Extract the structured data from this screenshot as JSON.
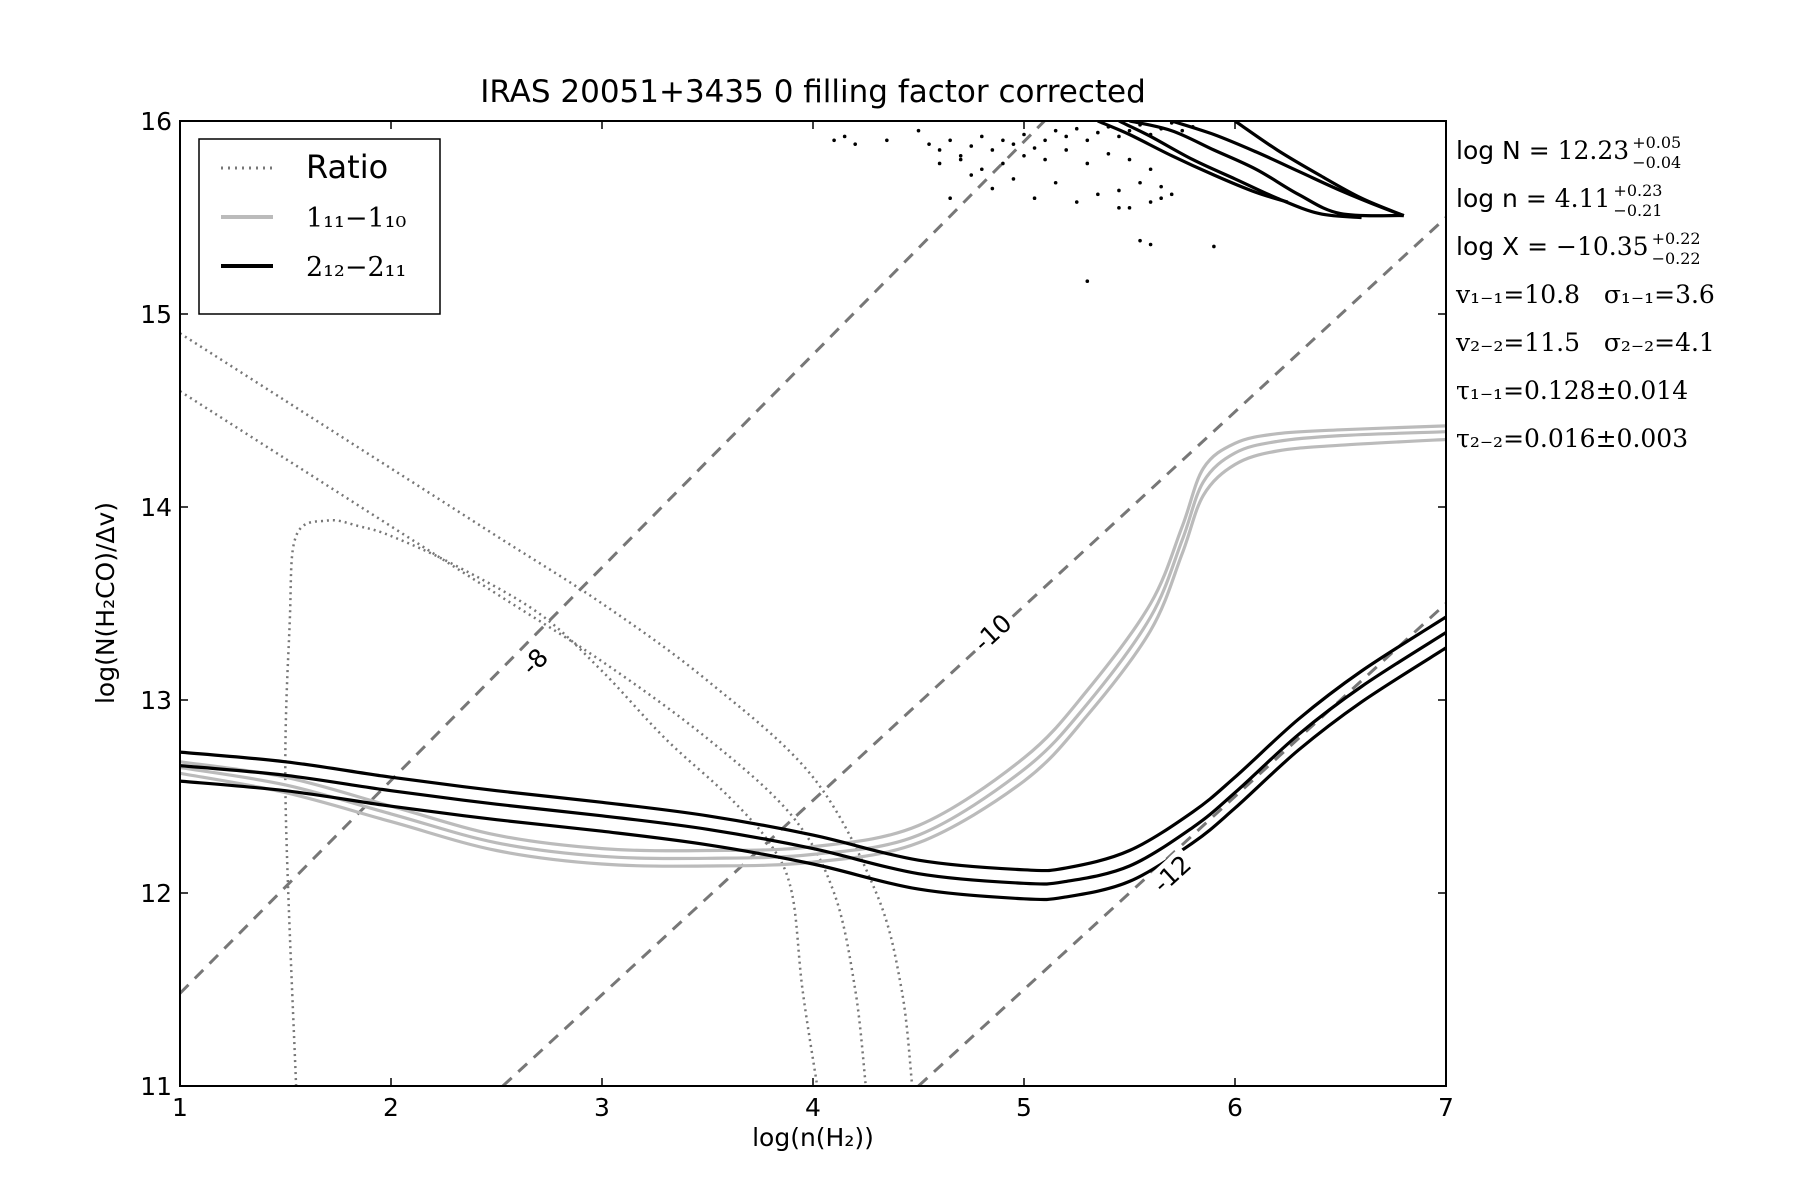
{
  "chart_data": {
    "type": "line",
    "title": "IRAS 20051+3435 0 filling factor corrected",
    "xlabel": "log(n(H₂))",
    "ylabel": "log(N(H₂CO)/Δv)",
    "xlim": [
      1,
      7
    ],
    "ylim": [
      11,
      16
    ],
    "x_ticks": [
      "1",
      "2",
      "3",
      "4",
      "5",
      "6",
      "7"
    ],
    "y_ticks": [
      "11",
      "12",
      "13",
      "14",
      "15",
      "16"
    ],
    "grid": false,
    "legend": {
      "placement": "top-left",
      "entries": [
        {
          "label": "Ratio",
          "style": "dotted",
          "color": "#777777"
        },
        {
          "label": "1₁₁−1₁₀",
          "style": "solid",
          "color": "#bbbbbb"
        },
        {
          "label": "2₁₂−2₁₁",
          "style": "solid",
          "color": "#000000"
        }
      ]
    },
    "x_diagonals": {
      "color": "#777777",
      "style": "dashed",
      "lines": [
        {
          "label": "-8",
          "x": [
            1,
            7
          ],
          "y": [
            11.48,
            18.1
          ]
        },
        {
          "label": "-10",
          "x": [
            2.53,
            7
          ],
          "y": [
            11,
            15.5
          ]
        },
        {
          "label": "-12",
          "x": [
            4.5,
            7
          ],
          "y": [
            11,
            13.5
          ]
        }
      ]
    },
    "series": [
      {
        "name": "Ratio",
        "color": "#777777",
        "style": "dotted",
        "x": [
          1.55,
          1.5,
          1.52,
          1.55,
          1.7,
          1.85,
          2.0,
          2.3,
          2.7,
          3.0,
          3.3,
          3.6,
          3.8,
          3.9,
          3.95,
          4.02
        ],
        "y": [
          11.0,
          12.5,
          13.4,
          13.85,
          13.93,
          13.9,
          13.85,
          13.7,
          13.45,
          13.15,
          12.8,
          12.5,
          12.25,
          12.0,
          11.5,
          11.0
        ]
      },
      {
        "name": "Ratio",
        "color": "#777777",
        "style": "dotted",
        "x": [
          1.0,
          1.5,
          2.0,
          2.5,
          3.0,
          3.5,
          3.9,
          4.1,
          4.2,
          4.25
        ],
        "y": [
          14.6,
          14.25,
          13.9,
          13.55,
          13.2,
          12.8,
          12.4,
          12.0,
          11.5,
          11.0
        ]
      },
      {
        "name": "Ratio",
        "color": "#777777",
        "style": "dotted",
        "x": [
          1.0,
          1.5,
          2.0,
          2.5,
          3.0,
          3.5,
          4.0,
          4.3,
          4.42,
          4.47
        ],
        "y": [
          14.9,
          14.55,
          14.2,
          13.85,
          13.5,
          13.1,
          12.6,
          12.0,
          11.5,
          11.0
        ]
      },
      {
        "name": "1₁₁−1₁₀",
        "color": "#bbbbbb",
        "style": "solid",
        "x": [
          1.0,
          1.5,
          2.0,
          2.5,
          3.0,
          3.5,
          4.0,
          4.5,
          5.0,
          5.3,
          5.6,
          5.75,
          5.85,
          6.0,
          6.2,
          6.5,
          7.0
        ],
        "y": [
          12.68,
          12.6,
          12.45,
          12.3,
          12.23,
          12.22,
          12.24,
          12.35,
          12.7,
          13.05,
          13.5,
          13.9,
          14.2,
          14.33,
          14.38,
          14.4,
          14.42
        ]
      },
      {
        "name": "1₁₁−1₁₀",
        "color": "#bbbbbb",
        "style": "solid",
        "x": [
          1.0,
          1.5,
          2.0,
          2.5,
          3.0,
          3.5,
          4.0,
          4.5,
          5.0,
          5.3,
          5.6,
          5.75,
          5.85,
          6.0,
          6.2,
          6.5,
          7.0
        ],
        "y": [
          12.65,
          12.56,
          12.41,
          12.26,
          12.19,
          12.18,
          12.2,
          12.3,
          12.64,
          12.98,
          13.43,
          13.83,
          14.13,
          14.28,
          14.34,
          14.37,
          14.39
        ]
      },
      {
        "name": "1₁₁−1₁₀",
        "color": "#bbbbbb",
        "style": "solid",
        "x": [
          1.0,
          1.5,
          2.0,
          2.5,
          3.0,
          3.5,
          4.0,
          4.5,
          5.0,
          5.3,
          5.6,
          5.75,
          5.85,
          6.0,
          6.2,
          6.5,
          7.0
        ],
        "y": [
          12.62,
          12.52,
          12.37,
          12.22,
          12.15,
          12.14,
          12.16,
          12.26,
          12.58,
          12.92,
          13.36,
          13.76,
          14.06,
          14.22,
          14.29,
          14.32,
          14.35
        ]
      },
      {
        "name": "2₁₂−2₁₁",
        "color": "#000000",
        "style": "solid",
        "x": [
          1.0,
          1.5,
          2.0,
          2.5,
          3.0,
          3.5,
          4.0,
          4.5,
          5.0,
          5.2,
          5.5,
          5.8,
          6.0,
          6.3,
          6.6,
          7.0
        ],
        "y": [
          12.73,
          12.68,
          12.6,
          12.53,
          12.47,
          12.4,
          12.3,
          12.17,
          12.12,
          12.13,
          12.22,
          12.42,
          12.6,
          12.9,
          13.15,
          13.43
        ]
      },
      {
        "name": "2₁₂−2₁₁",
        "color": "#000000",
        "style": "solid",
        "x": [
          1.0,
          1.5,
          2.0,
          2.5,
          3.0,
          3.5,
          4.0,
          4.5,
          5.0,
          5.2,
          5.5,
          5.8,
          6.0,
          6.3,
          6.6,
          7.0
        ],
        "y": [
          12.66,
          12.61,
          12.53,
          12.46,
          12.4,
          12.33,
          12.23,
          12.1,
          12.05,
          12.06,
          12.14,
          12.34,
          12.52,
          12.82,
          13.07,
          13.35
        ]
      },
      {
        "name": "2₁₂−2₁₁",
        "color": "#000000",
        "style": "solid",
        "x": [
          1.0,
          1.5,
          2.0,
          2.5,
          3.0,
          3.5,
          4.0,
          4.5,
          5.0,
          5.2,
          5.5,
          5.8,
          6.0,
          6.3,
          6.6,
          7.0
        ],
        "y": [
          12.58,
          12.53,
          12.45,
          12.38,
          12.32,
          12.25,
          12.15,
          12.02,
          11.97,
          11.98,
          12.06,
          12.26,
          12.44,
          12.74,
          12.99,
          13.27
        ]
      },
      {
        "name": "",
        "color": "#000000",
        "style": "solid",
        "x": [
          5.5,
          5.7,
          5.9,
          6.1,
          6.3,
          6.5,
          6.8
        ],
        "y": [
          16.0,
          15.95,
          15.85,
          15.75,
          15.62,
          15.52,
          15.51
        ]
      },
      {
        "name": "",
        "color": "#000000",
        "style": "solid",
        "x": [
          5.45,
          5.6,
          5.8,
          6.0,
          6.2,
          6.4,
          6.6
        ],
        "y": [
          16.0,
          15.92,
          15.8,
          15.7,
          15.6,
          15.52,
          15.5
        ]
      },
      {
        "name": "",
        "color": "#000000",
        "style": "solid",
        "x": [
          5.7,
          5.9,
          6.1,
          6.3,
          6.5,
          6.7,
          6.8
        ],
        "y": [
          16.0,
          15.93,
          15.84,
          15.74,
          15.64,
          15.55,
          15.51
        ]
      },
      {
        "name": "",
        "color": "#000000",
        "style": "solid",
        "x": [
          5.35,
          5.5,
          5.7,
          5.9,
          6.1,
          6.25
        ],
        "y": [
          16.0,
          15.93,
          15.82,
          15.72,
          15.63,
          15.58
        ]
      },
      {
        "name": "",
        "color": "#000000",
        "style": "solid",
        "x": [
          6.0,
          6.2,
          6.4,
          6.6,
          6.8
        ],
        "y": [
          16.0,
          15.85,
          15.72,
          15.6,
          15.51
        ]
      }
    ],
    "scatter_points": {
      "color": "#000000",
      "x": [
        4.1,
        4.15,
        4.2,
        4.35,
        4.5,
        4.55,
        4.6,
        4.65,
        4.7,
        4.75,
        4.8,
        4.85,
        4.9,
        4.95,
        5.0,
        5.05,
        5.1,
        5.15,
        5.2,
        5.25,
        5.3,
        5.35,
        5.4,
        5.45,
        5.5,
        5.55,
        5.6,
        5.65,
        5.7,
        5.75,
        5.8,
        4.6,
        4.7,
        4.8,
        4.9,
        5.0,
        5.1,
        5.2,
        5.3,
        5.4,
        5.5,
        5.6,
        4.65,
        4.85,
        5.05,
        5.25,
        5.45,
        5.65,
        5.35,
        5.55,
        5.6,
        5.7,
        4.75,
        4.95,
        5.15,
        5.45,
        5.65,
        5.6,
        5.9,
        5.3,
        5.55,
        5.5
      ],
      "y": [
        15.9,
        15.92,
        15.88,
        15.9,
        15.95,
        15.88,
        15.85,
        15.9,
        15.82,
        15.87,
        15.92,
        15.85,
        15.9,
        15.88,
        15.93,
        15.86,
        15.9,
        15.95,
        15.92,
        15.96,
        15.9,
        15.94,
        15.97,
        15.92,
        15.95,
        15.98,
        15.93,
        15.96,
        15.99,
        15.95,
        15.97,
        15.78,
        15.8,
        15.75,
        15.78,
        15.82,
        15.8,
        15.85,
        15.78,
        15.83,
        15.8,
        15.75,
        15.6,
        15.65,
        15.6,
        15.58,
        15.55,
        15.6,
        15.62,
        15.68,
        15.58,
        15.62,
        15.72,
        15.7,
        15.68,
        15.64,
        15.66,
        15.36,
        15.35,
        15.17,
        15.38,
        15.55
      ]
    },
    "annotations": [
      {
        "text": "log N = ",
        "math": "12.23",
        "sup": "+0.05",
        "sub": "−0.04"
      },
      {
        "text": "log n = ",
        "math": "4.11",
        "sup": "+0.23",
        "sub": "−0.21"
      },
      {
        "text": "log X = ",
        "math": "−10.35",
        "sup": "+0.22",
        "sub": "−0.22"
      },
      {
        "math": "v₁₋₁=10.8   σ₁₋₁=3.6"
      },
      {
        "math": "v₂₋₂=11.5   σ₂₋₂=4.1"
      },
      {
        "math": "τ₁₋₁=0.128±0.014"
      },
      {
        "math": "τ₂₋₂=0.016±0.003"
      }
    ]
  }
}
